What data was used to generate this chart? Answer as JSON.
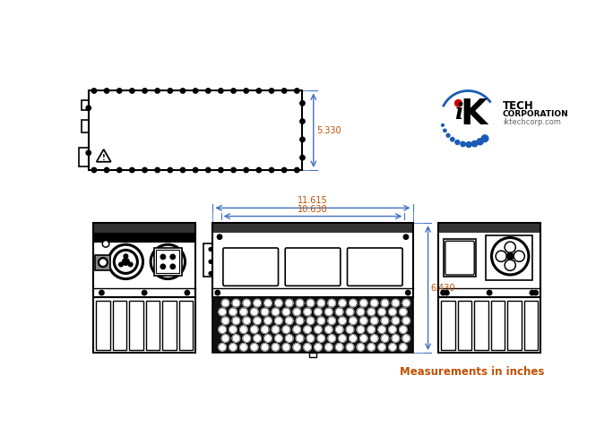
{
  "bg_color": "#ffffff",
  "line_color": "#000000",
  "dim_color": "#4472c4",
  "dim_text_color": "#c05000",
  "measurements_text": "Measurements in inches",
  "dim_5330": "5.330",
  "dim_11615": "11.615",
  "dim_10638": "10.638",
  "dim_6430": "6.430",
  "logo_dot_red": "#cc0000",
  "logo_dot_blue": "#1a5cb5",
  "logo_text1": "TECH",
  "logo_text2": "CORPORATION",
  "logo_text3": "iktechcorp.com"
}
